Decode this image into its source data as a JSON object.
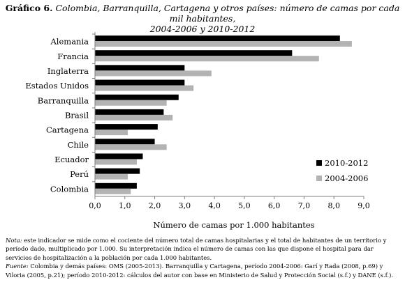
{
  "header": {
    "label": "Gráfico 6.",
    "title_line1": "Colombia, Barranquilla, Cartagena y otros países: número de camas por cada mil habitantes,",
    "title_line2": "2004-2006 y 2010-2012"
  },
  "chart_data": {
    "type": "bar",
    "orientation": "horizontal",
    "categories": [
      "Alemania",
      "Francia",
      "Inglaterra",
      "Estados Unidos",
      "Barranquilla",
      "Brasil",
      "Cartagena",
      "Chile",
      "Ecuador",
      "Perú",
      "Colombia"
    ],
    "series": [
      {
        "name": "2010-2012",
        "color": "#000000",
        "values": [
          8.2,
          6.6,
          3.0,
          3.0,
          2.8,
          2.3,
          2.1,
          2.0,
          1.6,
          1.5,
          1.4
        ]
      },
      {
        "name": "2004-2006",
        "color": "#b3b3b3",
        "values": [
          8.6,
          7.5,
          3.9,
          3.3,
          2.4,
          2.6,
          1.1,
          2.4,
          1.4,
          1.1,
          1.2
        ]
      }
    ],
    "xlabel": "Número de camas por 1.000 habitantes",
    "xlim": [
      0,
      9
    ],
    "xticks": [
      "0,0",
      "1,0",
      "2,0",
      "3,0",
      "4,0",
      "5,0",
      "6,0",
      "7,0",
      "8,0",
      "9,0"
    ],
    "grid": false,
    "legend_position": "bottom-right"
  },
  "notes": {
    "nota_label": "Nota:",
    "nota_text": " este indicador se mide como el cociente del número total de camas hospitalarias y el total de habitantes de un territorio y período dado, multiplicado por 1.000. Su interpretación indica el número de camas con las que dispone el hospital para dar servicios de hospitalización a la población por cada 1.000 habitantes.",
    "fuente_label": "Fuente:",
    "fuente_text": " Colombia y demás países: OMS (2005-2013). Barranquilla y Cartagena, período 2004-2006: Garí y Rada (2008, p.69) y Viloria (2005, p.21); período 2010-2012: cálculos del autor con base en Ministerio de Salud y Protección Social (s.f.) y DANE (s.f.)."
  }
}
